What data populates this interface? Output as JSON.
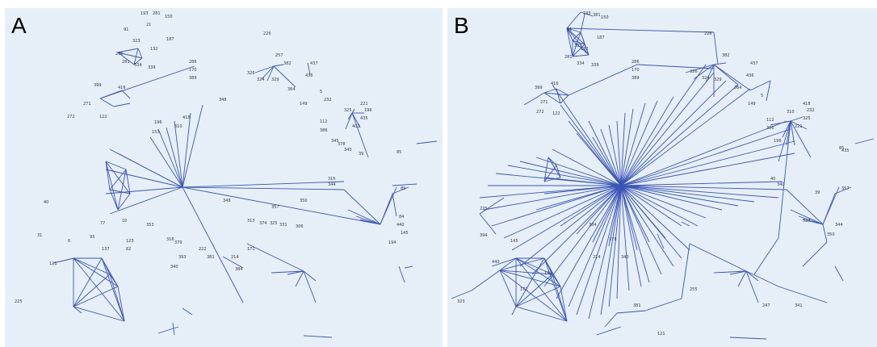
{
  "panels": [
    {
      "id": "A",
      "label": "A"
    },
    {
      "id": "B",
      "label": "B"
    }
  ],
  "colors": {
    "background": "#e6eff8",
    "edge": "#3b55b5",
    "text": "#333844"
  },
  "nodeLabels": {
    "A": [
      "193",
      "281",
      "150",
      "21",
      "91",
      "187",
      "323",
      "132",
      "206",
      "281",
      "334",
      "339",
      "286",
      "170",
      "389",
      "416",
      "399",
      "271",
      "272",
      "122",
      "226",
      "257",
      "382",
      "326",
      "324",
      "329",
      "364",
      "437",
      "436",
      "5",
      "149",
      "348",
      "196",
      "153",
      "310",
      "418",
      "112",
      "386",
      "232",
      "325",
      "221",
      "196",
      "435",
      "403",
      "345",
      "378",
      "340",
      "39",
      "85",
      "40",
      "315",
      "344",
      "348",
      "357",
      "350",
      "313",
      "374",
      "325",
      "331",
      "306",
      "89",
      "84",
      "440",
      "145",
      "194",
      "171",
      "214",
      "384",
      "316",
      "379",
      "353",
      "393",
      "222",
      "381",
      "340",
      "225",
      "123",
      "10",
      "77",
      "93",
      "137",
      "82",
      "31",
      "6",
      "121",
      "347",
      "341",
      "255"
    ],
    "B": [
      "193",
      "381",
      "150",
      "91",
      "187",
      "323",
      "132",
      "281",
      "334",
      "339",
      "286",
      "170",
      "389",
      "416",
      "399",
      "271",
      "272",
      "122",
      "226",
      "382",
      "326",
      "324",
      "329",
      "364",
      "437",
      "436",
      "5",
      "149",
      "112",
      "386",
      "310",
      "418",
      "232",
      "325",
      "221",
      "196",
      "435",
      "40",
      "340",
      "39",
      "85",
      "357",
      "344",
      "350",
      "337",
      "323",
      "225",
      "394",
      "440",
      "145",
      "194",
      "171",
      "214",
      "384",
      "378",
      "340",
      "381",
      "121",
      "255",
      "247",
      "341"
    ]
  }
}
